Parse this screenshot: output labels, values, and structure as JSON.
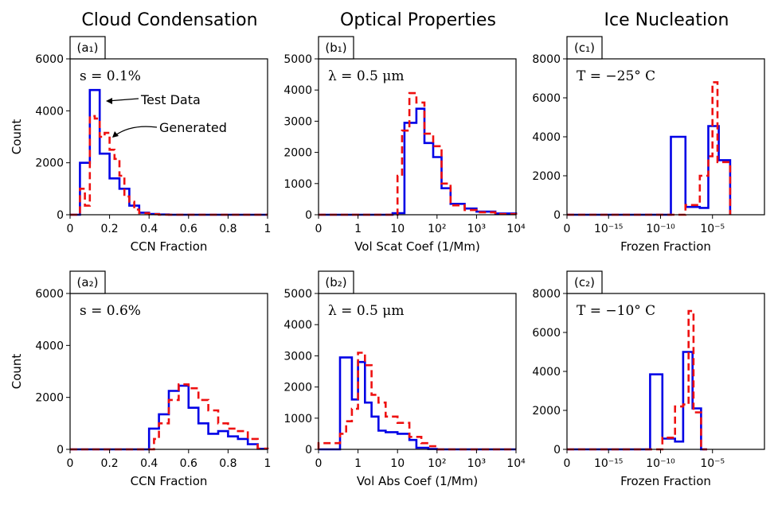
{
  "column_titles": [
    "Cloud Condensation",
    "Optical Properties",
    "Ice Nucleation"
  ],
  "colors": {
    "test": "#0000e6",
    "generated": "#ee1111",
    "axis": "#000000"
  },
  "annotations": {
    "test_label": "Test Data",
    "generated_label": "Generated"
  },
  "chart_data": [
    {
      "id": "a1",
      "type": "histogram",
      "panel_tag": "(a₁)",
      "param_text": "s = 0.1%",
      "xlabel": "CCN Fraction",
      "ylabel": "Count",
      "xscale": "linear",
      "xlim": [
        0,
        1
      ],
      "ylim": [
        0,
        6000
      ],
      "xticks": [
        0,
        0.2,
        0.4,
        0.6,
        0.8,
        1
      ],
      "xtick_labels": [
        "0",
        "0.2",
        "0.4",
        "0.6",
        "0.8",
        "1"
      ],
      "yticks": [
        0,
        2000,
        4000,
        6000
      ],
      "ytick_labels": [
        "0",
        "2000",
        "4000",
        "6000"
      ],
      "series": [
        {
          "name": "Test Data",
          "edges": [
            0.0,
            0.05,
            0.1,
            0.15,
            0.2,
            0.25,
            0.3,
            0.35,
            0.4,
            0.45,
            0.5,
            1.0
          ],
          "counts": [
            0,
            2000,
            4800,
            2350,
            1400,
            1000,
            350,
            80,
            30,
            10,
            0
          ]
        },
        {
          "name": "Generated",
          "edges": [
            0.0,
            0.05,
            0.075,
            0.1,
            0.125,
            0.15,
            0.175,
            0.2,
            0.225,
            0.25,
            0.275,
            0.3,
            0.325,
            0.35,
            0.4,
            0.45,
            0.5,
            1.0
          ],
          "counts": [
            0,
            1000,
            350,
            3800,
            3700,
            3000,
            3150,
            2500,
            2150,
            1500,
            700,
            500,
            200,
            60,
            20,
            0,
            0
          ]
        }
      ]
    },
    {
      "id": "b1",
      "type": "histogram",
      "panel_tag": "(b₁)",
      "param_text": "λ = 0.5 μm",
      "xlabel": "Vol Scat Coef (1/Mm)",
      "ylabel": "",
      "xscale": "symlog",
      "xlim": [
        0,
        10000
      ],
      "ylim": [
        0,
        5000
      ],
      "xticks": [
        0,
        1,
        10,
        100,
        1000,
        10000
      ],
      "xtick_labels": [
        "0",
        "1",
        "10",
        "10²",
        "10³",
        "10⁴"
      ],
      "yticks": [
        0,
        1000,
        2000,
        3000,
        4000,
        5000
      ],
      "ytick_labels": [
        "0",
        "1000",
        "2000",
        "3000",
        "4000",
        "5000"
      ],
      "series": [
        {
          "name": "Test Data",
          "edges": [
            0,
            7.5,
            15,
            30,
            48,
            80,
            130,
            220,
            500,
            1000,
            3000,
            10000
          ],
          "counts": [
            0,
            50,
            2950,
            3400,
            2300,
            1850,
            850,
            350,
            200,
            100,
            40
          ]
        },
        {
          "name": "Generated",
          "edges": [
            0,
            10,
            13,
            20,
            30,
            48,
            80,
            130,
            220,
            500,
            1000,
            3000,
            10000
          ],
          "counts": [
            0,
            1250,
            2700,
            3900,
            3600,
            2600,
            2200,
            1000,
            300,
            150,
            80,
            20
          ]
        }
      ]
    },
    {
      "id": "c1",
      "type": "histogram",
      "panel_tag": "(c₁)",
      "param_text": "T = −25° C",
      "xlabel": "Frozen Fraction",
      "ylabel": "",
      "xscale": "symlog",
      "xlim": [
        0,
        1
      ],
      "ylim": [
        0,
        8000
      ],
      "xticks": [
        0,
        1e-15,
        1e-10,
        1e-05
      ],
      "xtick_labels": [
        "0",
        "10⁻¹⁵",
        "10⁻¹⁰",
        "10⁻⁵"
      ],
      "yticks": [
        0,
        2000,
        4000,
        6000,
        8000
      ],
      "ytick_labels": [
        "0",
        "2000",
        "4000",
        "6000",
        "8000"
      ],
      "series": [
        {
          "name": "Test Data",
          "edges": [
            0,
            1e-09,
            2.5e-08,
            6e-07,
            4e-06,
            4e-05,
            0.0005
          ],
          "counts": [
            0,
            4000,
            400,
            350,
            4550,
            2800
          ]
        },
        {
          "name": "Generated",
          "edges": [
            0,
            2.5e-08,
            6e-07,
            4e-06,
            1e-05,
            3e-05,
            4e-05,
            0.0005
          ],
          "counts": [
            0,
            500,
            2000,
            3000,
            6800,
            2700,
            2700
          ]
        }
      ]
    },
    {
      "id": "a2",
      "type": "histogram",
      "panel_tag": "(a₂)",
      "param_text": "s = 0.6%",
      "xlabel": "CCN Fraction",
      "ylabel": "Count",
      "xscale": "linear",
      "xlim": [
        0,
        1
      ],
      "ylim": [
        0,
        6000
      ],
      "xticks": [
        0,
        0.2,
        0.4,
        0.6,
        0.8,
        1
      ],
      "xtick_labels": [
        "0",
        "0.2",
        "0.4",
        "0.6",
        "0.8",
        "1"
      ],
      "yticks": [
        0,
        2000,
        4000,
        6000
      ],
      "ytick_labels": [
        "0",
        "2000",
        "4000",
        "6000"
      ],
      "series": [
        {
          "name": "Test Data",
          "edges": [
            0,
            0.4,
            0.45,
            0.5,
            0.55,
            0.6,
            0.65,
            0.7,
            0.75,
            0.8,
            0.85,
            0.9,
            0.95,
            1.0
          ],
          "counts": [
            0,
            800,
            1350,
            2250,
            2450,
            1600,
            1000,
            600,
            700,
            500,
            400,
            200,
            20
          ]
        },
        {
          "name": "Generated",
          "edges": [
            0,
            0.425,
            0.45,
            0.5,
            0.55,
            0.6,
            0.65,
            0.7,
            0.75,
            0.8,
            0.85,
            0.9,
            0.95,
            1.0
          ],
          "counts": [
            0,
            400,
            1000,
            1900,
            2500,
            2350,
            1900,
            1500,
            1000,
            800,
            700,
            400,
            30
          ]
        }
      ]
    },
    {
      "id": "b2",
      "type": "histogram",
      "panel_tag": "(b₂)",
      "param_text": "λ = 0.5 μm",
      "xlabel": "Vol Abs Coef (1/Mm)",
      "ylabel": "",
      "xscale": "symlog",
      "xlim": [
        0,
        10000
      ],
      "ylim": [
        0,
        5000
      ],
      "xticks": [
        0,
        1,
        10,
        100,
        1000,
        10000
      ],
      "xtick_labels": [
        "0",
        "1",
        "10",
        "10²",
        "10³",
        "10⁴"
      ],
      "yticks": [
        0,
        1000,
        2000,
        3000,
        4000,
        5000
      ],
      "ytick_labels": [
        "0",
        "1000",
        "2000",
        "3000",
        "4000",
        "5000"
      ],
      "series": [
        {
          "name": "Test Data",
          "edges": [
            0,
            0.35,
            0.7,
            1.0,
            1.5,
            2.2,
            3.3,
            5,
            10,
            20,
            30,
            60,
            100,
            10000
          ],
          "counts": [
            0,
            2950,
            1600,
            2800,
            1500,
            1050,
            600,
            550,
            500,
            300,
            50,
            10,
            0
          ]
        },
        {
          "name": "Generated",
          "edges": [
            0,
            0.1,
            0.35,
            0.5,
            0.7,
            1.0,
            1.5,
            2.2,
            3.3,
            5,
            10,
            20,
            40,
            60,
            100,
            10000
          ],
          "counts": [
            0,
            200,
            500,
            900,
            1300,
            3100,
            2700,
            1750,
            1500,
            1050,
            850,
            400,
            200,
            100,
            0
          ]
        }
      ]
    },
    {
      "id": "c2",
      "type": "histogram",
      "panel_tag": "(c₂)",
      "param_text": "T = −10° C",
      "xlabel": "Frozen Fraction",
      "ylabel": "",
      "xscale": "symlog",
      "xlim": [
        0,
        1
      ],
      "ylim": [
        0,
        8000
      ],
      "xticks": [
        0,
        1e-15,
        1e-10,
        1e-05
      ],
      "xtick_labels": [
        "0",
        "10⁻¹⁵",
        "10⁻¹⁰",
        "10⁻⁵"
      ],
      "yticks": [
        0,
        2000,
        4000,
        6000,
        8000
      ],
      "ytick_labels": [
        "0",
        "2000",
        "4000",
        "6000",
        "8000"
      ],
      "series": [
        {
          "name": "Test Data",
          "edges": [
            0,
            1e-11,
            1.5e-10,
            2.5e-09,
            1.5e-08,
            1.2e-07,
            8e-07,
            3e-06
          ],
          "counts": [
            0,
            3850,
            550,
            400,
            5000,
            2100,
            0
          ]
        },
        {
          "name": "Generated",
          "edges": [
            0,
            1.5e-10,
            2.5e-09,
            1.5e-08,
            5e-08,
            1.5e-07,
            8e-07,
            3e-06
          ],
          "counts": [
            0,
            600,
            2200,
            2300,
            7100,
            1900,
            0
          ]
        }
      ]
    }
  ]
}
